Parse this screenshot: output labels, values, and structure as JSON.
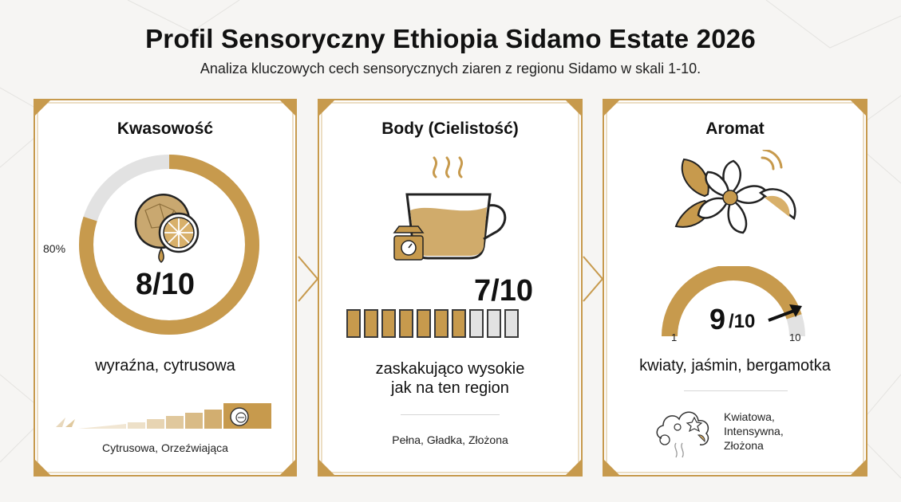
{
  "header": {
    "title": "Profil Sensoryczny Ethiopia Sidamo Estate 2026",
    "subtitle": "Analiza kluczowych cech sensorycznych ziaren z regionu Sidamo w skali 1-10."
  },
  "colors": {
    "gold": "#c79a4d",
    "gold_dark": "#a7782e",
    "gray": "#e2e2e2",
    "ink": "#111111"
  },
  "cards": [
    {
      "title": "Kwasowość",
      "icon": "lemon-icon",
      "ring_percent_label": "80%",
      "ring_fraction": 0.8,
      "score": "8/10",
      "description": "wyraźna, cytrusowa",
      "footer": "Cytrusowa, Orzeźwiająca"
    },
    {
      "title": "Body (Cielistość)",
      "icon": "coffee-cup-icon",
      "score": "7/10",
      "bar_filled": 7,
      "bar_total": 10,
      "description_line1": "zaskakująco wysokie",
      "description_line2": "jak na ten region",
      "footer": "Pełna, Gładka, Złożona"
    },
    {
      "title": "Aromat",
      "icon": "flower-icon",
      "score_main": "9",
      "score_sub": "/10",
      "gauge_fraction": 0.9,
      "gauge_min": "1",
      "gauge_max": "10",
      "description": "kwiaty, jaśmin, bergamotka",
      "footer_line1": "Kwiatowa,",
      "footer_line2": "Intensywna,",
      "footer_line3": "Złożona"
    }
  ]
}
